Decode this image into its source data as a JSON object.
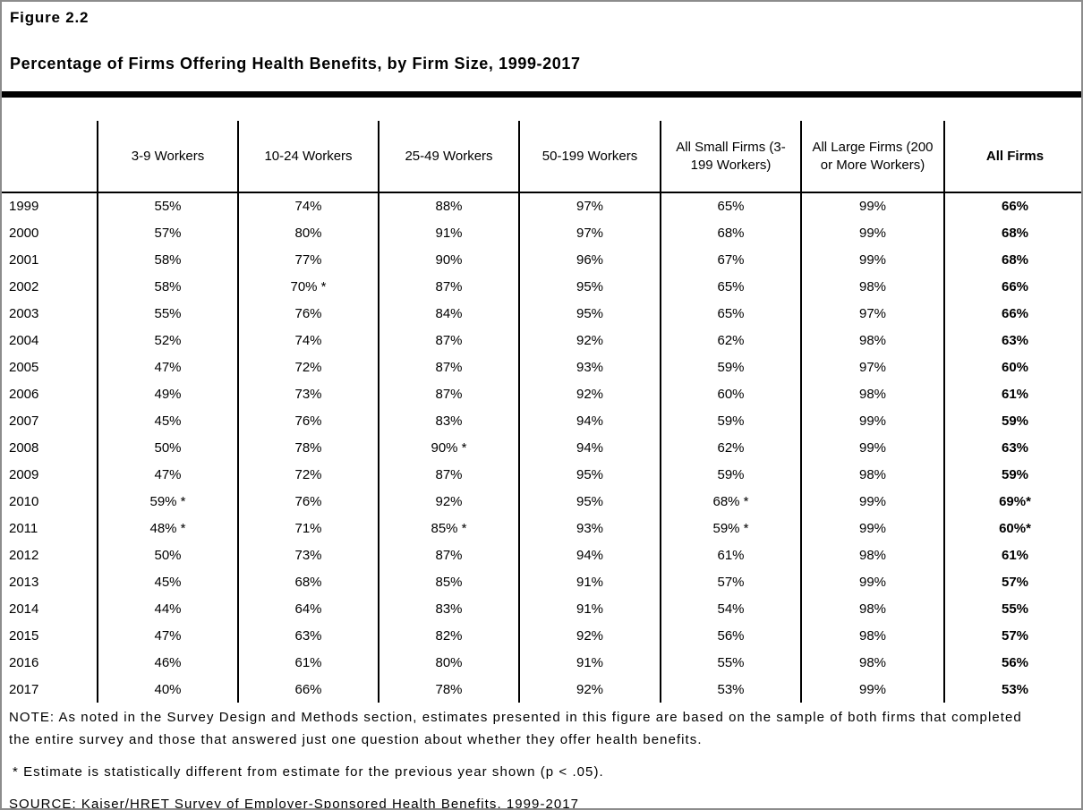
{
  "page": {
    "figure_label": "Figure 2.2",
    "title": "Percentage of Firms Offering Health Benefits, by Firm Size, 1999-2017"
  },
  "table": {
    "columns": [
      "",
      "3-9 Workers",
      "10-24 Workers",
      "25-49 Workers",
      "50-199 Workers",
      "All Small Firms (3-199 Workers)",
      "All Large Firms (200 or More Workers)",
      "All Firms"
    ],
    "rows": [
      {
        "year": "1999",
        "values": [
          "55%",
          "74%",
          "88%",
          "97%",
          "65%",
          "99%",
          "66%"
        ]
      },
      {
        "year": "2000",
        "values": [
          "57%",
          "80%",
          "91%",
          "97%",
          "68%",
          "99%",
          "68%"
        ]
      },
      {
        "year": "2001",
        "values": [
          "58%",
          "77%",
          "90%",
          "96%",
          "67%",
          "99%",
          "68%"
        ]
      },
      {
        "year": "2002",
        "values": [
          "58%",
          "70% *",
          "87%",
          "95%",
          "65%",
          "98%",
          "66%"
        ]
      },
      {
        "year": "2003",
        "values": [
          "55%",
          "76%",
          "84%",
          "95%",
          "65%",
          "97%",
          "66%"
        ]
      },
      {
        "year": "2004",
        "values": [
          "52%",
          "74%",
          "87%",
          "92%",
          "62%",
          "98%",
          "63%"
        ]
      },
      {
        "year": "2005",
        "values": [
          "47%",
          "72%",
          "87%",
          "93%",
          "59%",
          "97%",
          "60%"
        ]
      },
      {
        "year": "2006",
        "values": [
          "49%",
          "73%",
          "87%",
          "92%",
          "60%",
          "98%",
          "61%"
        ]
      },
      {
        "year": "2007",
        "values": [
          "45%",
          "76%",
          "83%",
          "94%",
          "59%",
          "99%",
          "59%"
        ]
      },
      {
        "year": "2008",
        "values": [
          "50%",
          "78%",
          "90% *",
          "94%",
          "62%",
          "99%",
          "63%"
        ]
      },
      {
        "year": "2009",
        "values": [
          "47%",
          "72%",
          "87%",
          "95%",
          "59%",
          "98%",
          "59%"
        ]
      },
      {
        "year": "2010",
        "values": [
          "59% *",
          "76%",
          "92%",
          "95%",
          "68% *",
          "99%",
          "69%*"
        ]
      },
      {
        "year": "2011",
        "values": [
          "48% *",
          "71%",
          "85% *",
          "93%",
          "59% *",
          "99%",
          "60%*"
        ]
      },
      {
        "year": "2012",
        "values": [
          "50%",
          "73%",
          "87%",
          "94%",
          "61%",
          "98%",
          "61%"
        ]
      },
      {
        "year": "2013",
        "values": [
          "45%",
          "68%",
          "85%",
          "91%",
          "57%",
          "99%",
          "57%"
        ]
      },
      {
        "year": "2014",
        "values": [
          "44%",
          "64%",
          "83%",
          "91%",
          "54%",
          "98%",
          "55%"
        ]
      },
      {
        "year": "2015",
        "values": [
          "47%",
          "63%",
          "82%",
          "92%",
          "56%",
          "98%",
          "57%"
        ]
      },
      {
        "year": "2016",
        "values": [
          "46%",
          "61%",
          "80%",
          "91%",
          "55%",
          "98%",
          "56%"
        ]
      },
      {
        "year": "2017",
        "values": [
          "40%",
          "66%",
          "78%",
          "92%",
          "53%",
          "99%",
          "53%"
        ]
      }
    ]
  },
  "chart_data": {
    "type": "table",
    "title": "Percentage of Firms Offering Health Benefits, by Firm Size, 1999-2017",
    "categories": [
      1999,
      2000,
      2001,
      2002,
      2003,
      2004,
      2005,
      2006,
      2007,
      2008,
      2009,
      2010,
      2011,
      2012,
      2013,
      2014,
      2015,
      2016,
      2017
    ],
    "series": [
      {
        "name": "3-9 Workers",
        "values": [
          55,
          57,
          58,
          58,
          55,
          52,
          47,
          49,
          45,
          50,
          47,
          59,
          48,
          50,
          45,
          44,
          47,
          46,
          40
        ]
      },
      {
        "name": "10-24 Workers",
        "values": [
          74,
          80,
          77,
          70,
          76,
          74,
          72,
          73,
          76,
          78,
          72,
          76,
          71,
          73,
          68,
          64,
          63,
          61,
          66
        ]
      },
      {
        "name": "25-49 Workers",
        "values": [
          88,
          91,
          90,
          87,
          84,
          87,
          87,
          87,
          83,
          90,
          87,
          92,
          85,
          87,
          85,
          83,
          82,
          80,
          78
        ]
      },
      {
        "name": "50-199 Workers",
        "values": [
          97,
          97,
          96,
          95,
          95,
          92,
          93,
          92,
          94,
          94,
          95,
          95,
          93,
          94,
          91,
          91,
          92,
          91,
          92
        ]
      },
      {
        "name": "All Small Firms (3-199 Workers)",
        "values": [
          65,
          68,
          67,
          65,
          65,
          62,
          59,
          60,
          59,
          62,
          59,
          68,
          59,
          61,
          57,
          54,
          56,
          55,
          53
        ]
      },
      {
        "name": "All Large Firms (200 or More Workers)",
        "values": [
          99,
          99,
          99,
          98,
          97,
          98,
          97,
          98,
          99,
          99,
          98,
          99,
          99,
          98,
          99,
          98,
          98,
          98,
          99
        ]
      },
      {
        "name": "All Firms",
        "values": [
          66,
          68,
          68,
          66,
          66,
          63,
          60,
          61,
          59,
          63,
          59,
          69,
          60,
          61,
          57,
          55,
          57,
          56,
          53
        ]
      }
    ],
    "asterisk_cells": [
      {
        "year": 2002,
        "series": "10-24 Workers"
      },
      {
        "year": 2008,
        "series": "25-49 Workers"
      },
      {
        "year": 2010,
        "series": "3-9 Workers"
      },
      {
        "year": 2010,
        "series": "All Small Firms (3-199 Workers)"
      },
      {
        "year": 2010,
        "series": "All Firms"
      },
      {
        "year": 2011,
        "series": "3-9 Workers"
      },
      {
        "year": 2011,
        "series": "25-49 Workers"
      },
      {
        "year": 2011,
        "series": "All Small Firms (3-199 Workers)"
      },
      {
        "year": 2011,
        "series": "All Firms"
      }
    ]
  },
  "notes": {
    "note": "NOTE: As noted in the Survey Design and Methods section, estimates presented in this figure are based on the sample of both firms that completed the entire survey and those that answered just one question about whether they offer health benefits.",
    "asterisk": "* Estimate is statistically different from estimate for the previous year shown (p < .05).",
    "source": "SOURCE: Kaiser/HRET Survey of Employer-Sponsored Health Benefits, 1999-2017"
  }
}
